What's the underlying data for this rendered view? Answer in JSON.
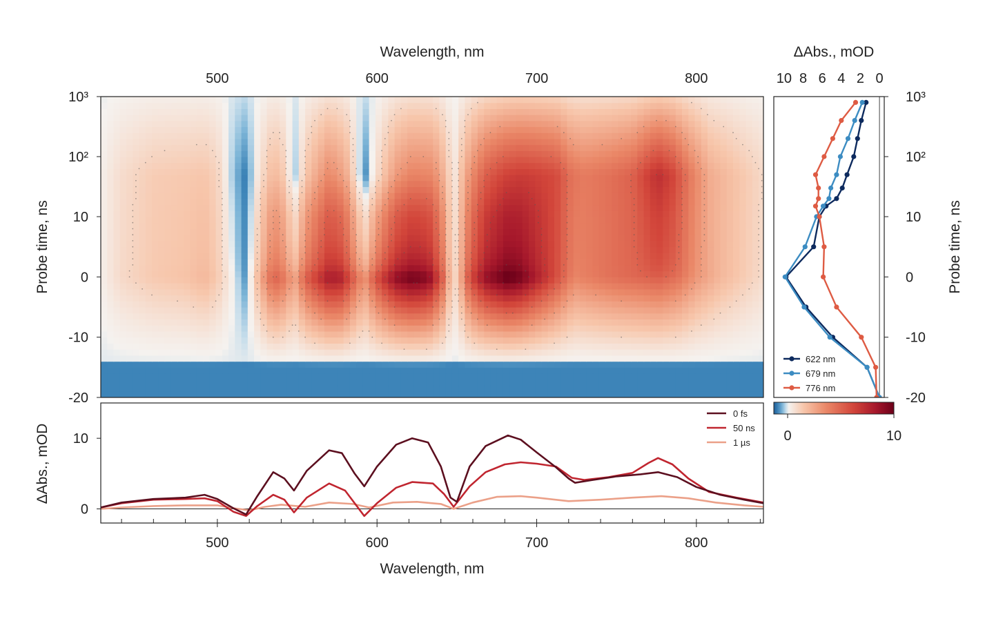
{
  "chart_data": [
    {
      "id": "map",
      "type": "heatmap",
      "title": "",
      "xlabel": "Wavelength, nm",
      "ylabel": "Probe time, ns",
      "xlim": [
        427,
        842
      ],
      "x_ticks": [
        500,
        600,
        700,
        800
      ],
      "y_ticks": [
        {
          "label": "10³",
          "value": 1000
        },
        {
          "label": "10²",
          "value": 100
        },
        {
          "label": "10",
          "value": 10
        },
        {
          "label": "0",
          "value": 0
        },
        {
          "label": "-10",
          "value": -10
        },
        {
          "label": "-20",
          "value": -20
        }
      ],
      "y_scale": "linear from -20 to 10 ns, logarithmic from 10 to 10³ ns",
      "colorscale": {
        "min": 0,
        "max": 10,
        "tick_labels": [
          "0",
          "10"
        ],
        "colors": [
          "#1f5e98",
          "#3d84b8",
          "#7db5d7",
          "#c6ddeb",
          "#f5f2ef",
          "#f7c6ab",
          "#ea8868",
          "#d2453a",
          "#a5172b",
          "#6c0019"
        ]
      },
      "contour_lines": "on",
      "band_centers_nm": [
        465,
        535,
        570,
        622,
        681,
        776
      ],
      "bleach_centers_nm": [
        515,
        548,
        592,
        648
      ]
    },
    {
      "id": "kinetics",
      "type": "line",
      "title": "",
      "xlabel": "ΔAbs., mOD",
      "ylabel": "Probe time, ns",
      "x_ticks": [
        "10",
        "8",
        "6",
        "4",
        "2",
        "0"
      ],
      "xlim": [
        10.5,
        -0.5
      ],
      "legend_position": "bottom-left",
      "series": [
        {
          "name": "622 nm",
          "color": "#0d2a5e",
          "points": [
            [
              0,
              -20
            ],
            [
              1.3,
              -15
            ],
            [
              4.9,
              -10
            ],
            [
              7.7,
              -5
            ],
            [
              9.8,
              0
            ],
            [
              6.9,
              5
            ],
            [
              6.3,
              10
            ],
            [
              5.6,
              15
            ],
            [
              4.5,
              20
            ],
            [
              3.9,
              30
            ],
            [
              3.4,
              50
            ],
            [
              2.7,
              100
            ],
            [
              2.3,
              200
            ],
            [
              1.9,
              400
            ],
            [
              1.4,
              800
            ]
          ]
        },
        {
          "name": "679 nm",
          "color": "#3c8cc2",
          "points": [
            [
              0,
              -20
            ],
            [
              1.3,
              -15
            ],
            [
              5.2,
              -10
            ],
            [
              7.9,
              -5
            ],
            [
              9.9,
              0
            ],
            [
              7.8,
              5
            ],
            [
              6.6,
              10
            ],
            [
              5.9,
              15
            ],
            [
              5.3,
              20
            ],
            [
              5.1,
              30
            ],
            [
              4.5,
              50
            ],
            [
              4.1,
              100
            ],
            [
              3.3,
              200
            ],
            [
              2.6,
              400
            ],
            [
              1.8,
              800
            ]
          ]
        },
        {
          "name": "776 nm",
          "color": "#de5b43",
          "points": [
            [
              0.3,
              -20
            ],
            [
              0.4,
              -15
            ],
            [
              1.9,
              -10
            ],
            [
              4.5,
              -5
            ],
            [
              5.9,
              0
            ],
            [
              5.8,
              5
            ],
            [
              6.3,
              10
            ],
            [
              6.7,
              15
            ],
            [
              6.4,
              20
            ],
            [
              6.4,
              30
            ],
            [
              6.7,
              50
            ],
            [
              5.8,
              100
            ],
            [
              4.9,
              200
            ],
            [
              4.0,
              400
            ],
            [
              2.5,
              800
            ]
          ]
        }
      ]
    },
    {
      "id": "spectra",
      "type": "line",
      "title": "",
      "xlabel": "Wavelength, nm",
      "ylabel": "ΔAbs., mOD",
      "xlim": [
        427,
        842
      ],
      "ylim": [
        -2,
        15
      ],
      "x_ticks": [
        500,
        600,
        700,
        800
      ],
      "y_ticks": [
        0,
        10
      ],
      "legend_position": "top-right",
      "series": [
        {
          "name": "0 fs",
          "color": "#5c0f1f",
          "points": [
            [
              427,
              0.2
            ],
            [
              440,
              0.9
            ],
            [
              460,
              1.4
            ],
            [
              480,
              1.6
            ],
            [
              492,
              2.0
            ],
            [
              500,
              1.4
            ],
            [
              510,
              0.1
            ],
            [
              518,
              -0.8
            ],
            [
              525,
              1.8
            ],
            [
              535,
              5.2
            ],
            [
              542,
              4.3
            ],
            [
              548,
              2.6
            ],
            [
              556,
              5.4
            ],
            [
              570,
              8.3
            ],
            [
              578,
              7.9
            ],
            [
              586,
              5.0
            ],
            [
              592,
              3.2
            ],
            [
              600,
              6.0
            ],
            [
              612,
              9.1
            ],
            [
              622,
              10.0
            ],
            [
              632,
              9.4
            ],
            [
              640,
              6.0
            ],
            [
              646,
              1.6
            ],
            [
              650,
              1.0
            ],
            [
              658,
              6.0
            ],
            [
              668,
              8.9
            ],
            [
              682,
              10.4
            ],
            [
              690,
              9.8
            ],
            [
              700,
              8.0
            ],
            [
              712,
              5.9
            ],
            [
              720,
              4.3
            ],
            [
              724,
              3.7
            ],
            [
              735,
              4.1
            ],
            [
              750,
              4.6
            ],
            [
              765,
              4.9
            ],
            [
              776,
              5.2
            ],
            [
              788,
              4.5
            ],
            [
              800,
              3.1
            ],
            [
              815,
              2.0
            ],
            [
              830,
              1.3
            ],
            [
              842,
              0.8
            ]
          ]
        },
        {
          "name": "50 ns",
          "color": "#c0252f",
          "points": [
            [
              427,
              0.2
            ],
            [
              440,
              0.8
            ],
            [
              460,
              1.3
            ],
            [
              480,
              1.4
            ],
            [
              492,
              1.5
            ],
            [
              500,
              1.1
            ],
            [
              510,
              -0.4
            ],
            [
              518,
              -1.0
            ],
            [
              525,
              0.4
            ],
            [
              535,
              2.0
            ],
            [
              542,
              1.3
            ],
            [
              548,
              -0.5
            ],
            [
              556,
              1.6
            ],
            [
              570,
              3.6
            ],
            [
              580,
              2.6
            ],
            [
              592,
              -1.0
            ],
            [
              600,
              0.8
            ],
            [
              612,
              3.0
            ],
            [
              622,
              3.8
            ],
            [
              635,
              3.6
            ],
            [
              642,
              2.1
            ],
            [
              648,
              0.3
            ],
            [
              658,
              3.2
            ],
            [
              668,
              5.2
            ],
            [
              680,
              6.3
            ],
            [
              690,
              6.6
            ],
            [
              700,
              6.4
            ],
            [
              712,
              6.0
            ],
            [
              722,
              4.4
            ],
            [
              730,
              4.1
            ],
            [
              745,
              4.5
            ],
            [
              760,
              5.1
            ],
            [
              770,
              6.5
            ],
            [
              776,
              7.2
            ],
            [
              785,
              6.3
            ],
            [
              795,
              4.3
            ],
            [
              808,
              2.4
            ],
            [
              825,
              1.6
            ],
            [
              842,
              0.9
            ]
          ]
        },
        {
          "name": "1 µs",
          "color": "#eba088",
          "points": [
            [
              427,
              0.0
            ],
            [
              440,
              0.2
            ],
            [
              460,
              0.4
            ],
            [
              480,
              0.5
            ],
            [
              500,
              0.5
            ],
            [
              510,
              0.1
            ],
            [
              520,
              -0.2
            ],
            [
              530,
              0.3
            ],
            [
              540,
              0.6
            ],
            [
              555,
              0.3
            ],
            [
              570,
              0.9
            ],
            [
              585,
              0.7
            ],
            [
              595,
              0.2
            ],
            [
              610,
              0.9
            ],
            [
              625,
              1.0
            ],
            [
              640,
              0.7
            ],
            [
              648,
              0.0
            ],
            [
              660,
              0.9
            ],
            [
              675,
              1.7
            ],
            [
              690,
              1.8
            ],
            [
              700,
              1.6
            ],
            [
              720,
              1.1
            ],
            [
              740,
              1.3
            ],
            [
              760,
              1.6
            ],
            [
              778,
              1.8
            ],
            [
              795,
              1.5
            ],
            [
              812,
              0.9
            ],
            [
              830,
              0.5
            ],
            [
              842,
              0.3
            ]
          ]
        }
      ]
    }
  ]
}
